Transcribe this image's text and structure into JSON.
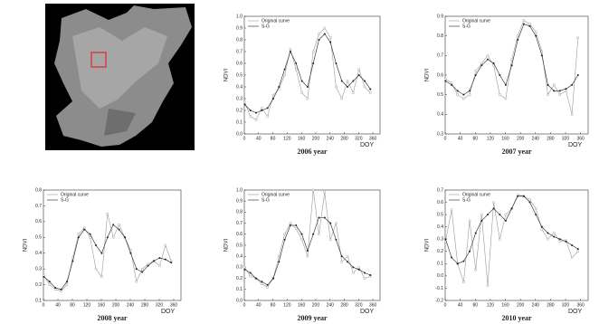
{
  "chart_data": [
    {
      "type": "line",
      "title": "2006 year",
      "xlabel": "DOY",
      "ylabel": "NDVI",
      "x": [
        1,
        17,
        33,
        49,
        65,
        81,
        97,
        113,
        129,
        145,
        161,
        177,
        193,
        209,
        225,
        241,
        257,
        273,
        289,
        305,
        321,
        337,
        353
      ],
      "series": [
        {
          "name": "Original curve",
          "color": "#9a9a9a",
          "values": [
            0.27,
            0.15,
            0.12,
            0.22,
            0.15,
            0.33,
            0.38,
            0.5,
            0.72,
            0.55,
            0.35,
            0.3,
            0.7,
            0.85,
            0.9,
            0.82,
            0.4,
            0.3,
            0.45,
            0.35,
            0.55,
            0.4,
            0.35
          ]
        },
        {
          "name": "S-G",
          "color": "#222222",
          "values": [
            0.25,
            0.2,
            0.18,
            0.2,
            0.22,
            0.3,
            0.4,
            0.55,
            0.7,
            0.6,
            0.45,
            0.4,
            0.6,
            0.8,
            0.85,
            0.78,
            0.6,
            0.45,
            0.4,
            0.45,
            0.5,
            0.45,
            0.38
          ]
        }
      ],
      "xlim": [
        0,
        380
      ],
      "xticks": [
        0,
        40,
        80,
        120,
        160,
        200,
        240,
        280,
        320,
        360
      ],
      "ylim": [
        0,
        1.0
      ],
      "yticks": [
        {
          "value": 0,
          "label": "0.0"
        },
        0.1,
        0.2,
        0.3,
        0.4,
        0.5,
        0.6,
        0.7,
        0.8,
        0.9,
        {
          "value": 1.0,
          "label": "1.0"
        }
      ]
    },
    {
      "type": "line",
      "title": "2007 year",
      "xlabel": "DOY",
      "ylabel": "NDVI",
      "x": [
        1,
        17,
        33,
        49,
        65,
        81,
        97,
        113,
        129,
        145,
        161,
        177,
        193,
        209,
        225,
        241,
        257,
        273,
        289,
        305,
        321,
        337,
        353
      ],
      "series": [
        {
          "name": "Original curve",
          "color": "#9a9a9a",
          "values": [
            0.58,
            0.56,
            0.5,
            0.48,
            0.5,
            0.62,
            0.66,
            0.7,
            0.65,
            0.5,
            0.48,
            0.68,
            0.8,
            0.88,
            0.86,
            0.82,
            0.72,
            0.5,
            0.55,
            0.5,
            0.52,
            0.4,
            0.79
          ]
        },
        {
          "name": "S-G",
          "color": "#222222",
          "values": [
            0.57,
            0.55,
            0.52,
            0.5,
            0.52,
            0.6,
            0.65,
            0.68,
            0.66,
            0.6,
            0.55,
            0.65,
            0.78,
            0.86,
            0.85,
            0.8,
            0.7,
            0.55,
            0.52,
            0.52,
            0.53,
            0.55,
            0.6
          ]
        }
      ],
      "xlim": [
        0,
        380
      ],
      "xticks": [
        0,
        40,
        80,
        120,
        160,
        200,
        240,
        280,
        320,
        360
      ],
      "ylim": [
        0.3,
        0.9
      ],
      "yticks": [
        0.3,
        0.4,
        0.5,
        0.6,
        0.7,
        0.8,
        0.9
      ]
    },
    {
      "type": "line",
      "title": "2008 year",
      "xlabel": "DOY",
      "ylabel": "NDVI",
      "x": [
        1,
        17,
        33,
        49,
        65,
        81,
        97,
        113,
        129,
        145,
        161,
        177,
        193,
        209,
        225,
        241,
        257,
        273,
        289,
        305,
        321,
        337,
        353
      ],
      "series": [
        {
          "name": "Original curve",
          "color": "#9a9a9a",
          "values": [
            0.26,
            0.2,
            0.17,
            0.16,
            0.2,
            0.37,
            0.52,
            0.56,
            0.5,
            0.3,
            0.25,
            0.65,
            0.5,
            0.58,
            0.5,
            0.42,
            0.22,
            0.3,
            0.33,
            0.35,
            0.32,
            0.45,
            0.35
          ]
        },
        {
          "name": "S-G",
          "color": "#222222",
          "values": [
            0.25,
            0.22,
            0.18,
            0.17,
            0.22,
            0.35,
            0.5,
            0.55,
            0.52,
            0.45,
            0.4,
            0.5,
            0.58,
            0.55,
            0.5,
            0.4,
            0.3,
            0.28,
            0.32,
            0.35,
            0.37,
            0.36,
            0.34
          ]
        }
      ],
      "xlim": [
        0,
        380
      ],
      "xticks": [
        0,
        40,
        80,
        120,
        160,
        200,
        240,
        280,
        320,
        360
      ],
      "ylim": [
        0.1,
        0.8
      ],
      "yticks": [
        0.1,
        0.2,
        0.3,
        0.4,
        0.5,
        0.6,
        0.7,
        0.8
      ]
    },
    {
      "type": "line",
      "title": "2009 year",
      "xlabel": "DOY",
      "ylabel": "NDVI",
      "x": [
        1,
        17,
        33,
        49,
        65,
        81,
        97,
        113,
        129,
        145,
        161,
        177,
        193,
        209,
        225,
        241,
        257,
        273,
        289,
        305,
        321,
        337,
        353
      ],
      "series": [
        {
          "name": "Original curve",
          "color": "#9a9a9a",
          "values": [
            0.3,
            0.22,
            0.2,
            0.15,
            0.12,
            0.2,
            0.4,
            0.6,
            0.7,
            0.65,
            0.55,
            0.4,
            1.0,
            0.6,
            0.98,
            0.55,
            0.7,
            0.35,
            0.4,
            0.25,
            0.3,
            0.2,
            0.22
          ]
        },
        {
          "name": "S-G",
          "color": "#222222",
          "values": [
            0.28,
            0.25,
            0.2,
            0.17,
            0.14,
            0.2,
            0.35,
            0.55,
            0.68,
            0.68,
            0.6,
            0.45,
            0.6,
            0.75,
            0.75,
            0.7,
            0.55,
            0.4,
            0.35,
            0.3,
            0.28,
            0.25,
            0.23
          ]
        }
      ],
      "xlim": [
        0,
        380
      ],
      "xticks": [
        0,
        40,
        80,
        120,
        160,
        200,
        240,
        280,
        320,
        360
      ],
      "ylim": [
        0,
        1.0
      ],
      "yticks": [
        {
          "value": 0,
          "label": "0.0"
        },
        0.1,
        0.2,
        0.3,
        0.4,
        0.5,
        0.6,
        0.7,
        0.8,
        0.9,
        {
          "value": 1.0,
          "label": "1.0"
        }
      ]
    },
    {
      "type": "line",
      "title": "2010 year",
      "xlabel": "DOY",
      "ylabel": "NDVI",
      "x": [
        1,
        17,
        33,
        49,
        65,
        81,
        97,
        113,
        129,
        145,
        161,
        177,
        193,
        209,
        225,
        241,
        257,
        273,
        289,
        305,
        321,
        337,
        353
      ],
      "series": [
        {
          "name": "Original curve",
          "color": "#9a9a9a",
          "values": [
            0.28,
            0.54,
            0.1,
            -0.05,
            0.45,
            0.05,
            0.5,
            -0.08,
            0.6,
            0.3,
            0.5,
            0.55,
            0.66,
            0.65,
            0.62,
            0.55,
            0.38,
            0.3,
            0.35,
            0.28,
            0.29,
            0.15,
            0.2
          ]
        },
        {
          "name": "S-G",
          "color": "#222222",
          "values": [
            0.3,
            0.15,
            0.1,
            0.12,
            0.2,
            0.35,
            0.45,
            0.5,
            0.55,
            0.5,
            0.45,
            0.55,
            0.65,
            0.65,
            0.6,
            0.5,
            0.4,
            0.35,
            0.32,
            0.3,
            0.28,
            0.25,
            0.22
          ]
        }
      ],
      "xlim": [
        0,
        380
      ],
      "xticks": [
        0,
        40,
        80,
        120,
        160,
        200,
        240,
        280,
        320,
        360
      ],
      "ylim": [
        -0.2,
        0.7
      ],
      "yticks": [
        -0.2,
        -0.1,
        {
          "value": 0,
          "label": "0.0"
        },
        0.1,
        0.2,
        0.3,
        0.4,
        0.5,
        0.6,
        0.7
      ]
    }
  ]
}
